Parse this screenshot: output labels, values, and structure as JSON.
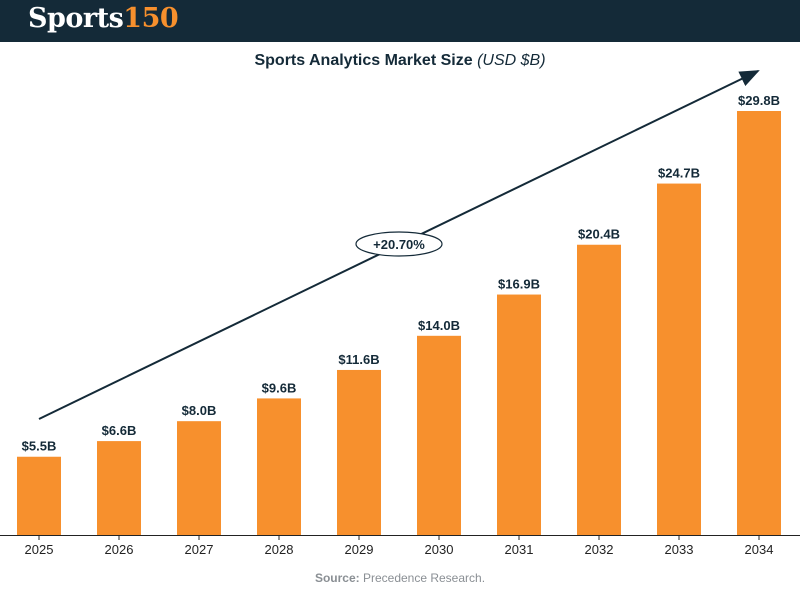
{
  "brand": {
    "word": "Sports",
    "number": "150"
  },
  "chart_data": {
    "type": "bar",
    "title": "Sports Analytics Market Size",
    "unit": "(USD $B)",
    "categories": [
      "2025",
      "2026",
      "2027",
      "2028",
      "2029",
      "2030",
      "2031",
      "2032",
      "2033",
      "2034"
    ],
    "values": [
      5.5,
      6.6,
      8.0,
      9.6,
      11.6,
      14.0,
      16.9,
      20.4,
      24.7,
      29.8
    ],
    "data_labels": [
      "$5.5B",
      "$6.6B",
      "$8.0B",
      "$9.6B",
      "$11.6B",
      "$14.0B",
      "$16.9B",
      "$20.4B",
      "$24.7B",
      "$29.8B"
    ],
    "ylim": [
      0,
      30
    ],
    "xlabel": "",
    "ylabel": "",
    "trend_annotation": "+20.70%",
    "bar_color": "#f7902d",
    "text_color": "#142a38"
  },
  "source": {
    "prefix": "Source:",
    "text": "Precedence Research."
  }
}
